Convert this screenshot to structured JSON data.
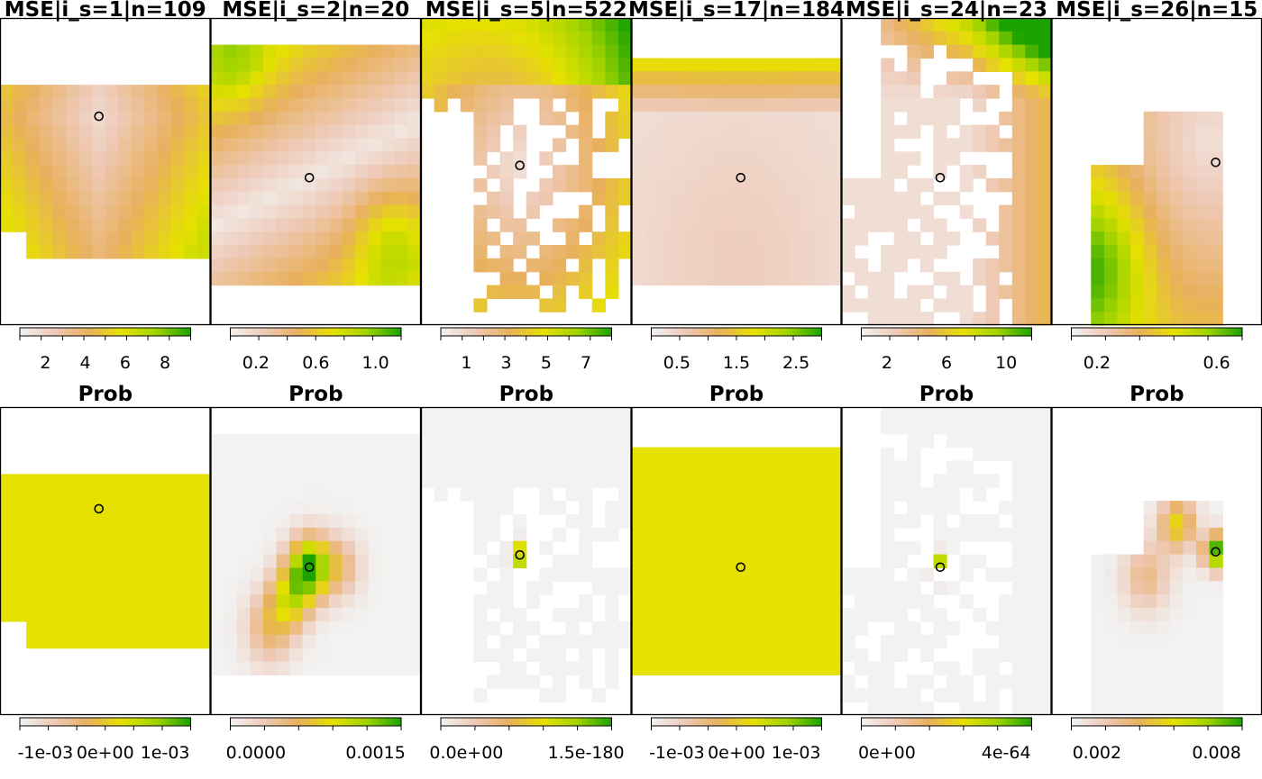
{
  "figure": {
    "row_titles": [
      "MSE|i_s=1|n=109",
      "MSE|i_s=2|n=20",
      "MSE|i_s=5|n=522",
      "MSE|i_s=17|n=184",
      "MSE|i_s=24|n=23",
      "MSE|i_s=26|n=15"
    ],
    "panel_title": "Prob"
  },
  "palette": {
    "stops": [
      "#f2f2f2",
      "#eec9b6",
      "#e8b05c",
      "#e6e100",
      "#9fd300",
      "#1ca200"
    ],
    "missing": "#ffffff",
    "frame": "#000000"
  },
  "chart_data": [
    {
      "type": "heatmap",
      "row": "MSE",
      "panel": 1,
      "title": "MSE|i_s=1|n=109",
      "colorbar_ticks": [
        "2",
        "4",
        "6",
        "8"
      ],
      "zlim": [
        0.5,
        10.5
      ],
      "marker": {
        "x": 0.47,
        "y": 0.32
      }
    },
    {
      "type": "heatmap",
      "row": "MSE",
      "panel": 2,
      "title": "MSE|i_s=2|n=20",
      "colorbar_ticks": [
        "0.2",
        "0.6",
        "1.0"
      ],
      "zlim": [
        0.05,
        1.2
      ],
      "marker": {
        "x": 0.47,
        "y": 0.52
      }
    },
    {
      "type": "heatmap",
      "row": "MSE",
      "panel": 3,
      "title": "MSE|i_s=5|n=522",
      "colorbar_ticks": [
        "1",
        "3",
        "5",
        "7"
      ],
      "zlim": [
        0.5,
        7.5
      ],
      "marker": {
        "x": 0.47,
        "y": 0.48
      }
    },
    {
      "type": "heatmap",
      "row": "MSE",
      "panel": 4,
      "title": "MSE|i_s=17|n=184",
      "colorbar_ticks": [
        "0.5",
        "1.5",
        "2.5"
      ],
      "zlim": [
        0.3,
        3.2
      ],
      "marker": {
        "x": 0.52,
        "y": 0.52
      }
    },
    {
      "type": "heatmap",
      "row": "MSE",
      "panel": 5,
      "title": "MSE|i_s=24|n=23",
      "colorbar_ticks": [
        "2",
        "6",
        "10"
      ],
      "zlim": [
        0.5,
        13
      ],
      "marker": {
        "x": 0.47,
        "y": 0.52
      }
    },
    {
      "type": "heatmap",
      "row": "MSE",
      "panel": 6,
      "title": "MSE|i_s=26|n=15",
      "colorbar_ticks": [
        "0.2",
        "0.6"
      ],
      "zlim": [
        0.05,
        0.85
      ],
      "marker": {
        "x": 0.78,
        "y": 0.47
      }
    },
    {
      "type": "heatmap",
      "row": "Prob",
      "panel": 1,
      "title": "Prob",
      "colorbar_ticks": [
        "-1e-03",
        "0e+00",
        "1e-03"
      ],
      "zlim": [
        -0.001,
        0.001
      ],
      "marker": {
        "x": 0.47,
        "y": 0.33
      }
    },
    {
      "type": "heatmap",
      "row": "Prob",
      "panel": 2,
      "title": "Prob",
      "colorbar_ticks": [
        "0.0000",
        "0.0015"
      ],
      "zlim": [
        0,
        0.002
      ],
      "marker": {
        "x": 0.47,
        "y": 0.52
      }
    },
    {
      "type": "heatmap",
      "row": "Prob",
      "panel": 3,
      "title": "Prob",
      "colorbar_ticks": [
        "0.0e+00",
        "1.5e-180"
      ],
      "zlim": [
        0,
        2.5e-180
      ],
      "marker": {
        "x": 0.47,
        "y": 0.48
      }
    },
    {
      "type": "heatmap",
      "row": "Prob",
      "panel": 4,
      "title": "Prob",
      "colorbar_ticks": [
        "-1e-03",
        "0e+00",
        "1e-03"
      ],
      "zlim": [
        -0.001,
        0.001
      ],
      "marker": {
        "x": 0.52,
        "y": 0.52
      }
    },
    {
      "type": "heatmap",
      "row": "Prob",
      "panel": 5,
      "title": "Prob",
      "colorbar_ticks": [
        "0e+00",
        "4e-64"
      ],
      "zlim": [
        0,
        8e-64
      ],
      "marker": {
        "x": 0.47,
        "y": 0.52
      }
    },
    {
      "type": "heatmap",
      "row": "Prob",
      "panel": 6,
      "title": "Prob",
      "colorbar_ticks": [
        "0.002",
        "0.008"
      ],
      "zlim": [
        0,
        0.0095
      ],
      "marker": {
        "x": 0.78,
        "y": 0.47
      }
    }
  ]
}
